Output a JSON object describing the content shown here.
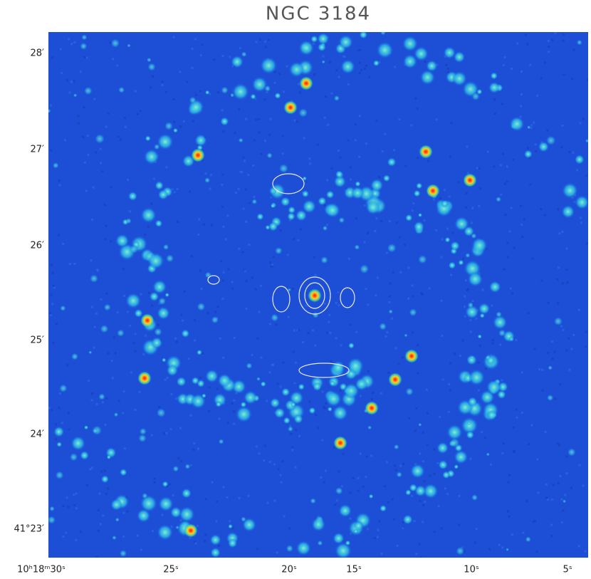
{
  "title": "NGC 3184",
  "y_axis": {
    "ticks": [
      "28′",
      "27′",
      "26′",
      "25′",
      "24′",
      "41°23′"
    ]
  },
  "x_axis": {
    "ticks": [
      "10ʰ18ᵐ30ˢ",
      "25ˢ",
      "20ˢ",
      "15ˢ",
      "10ˢ",
      "5ˢ"
    ]
  }
}
